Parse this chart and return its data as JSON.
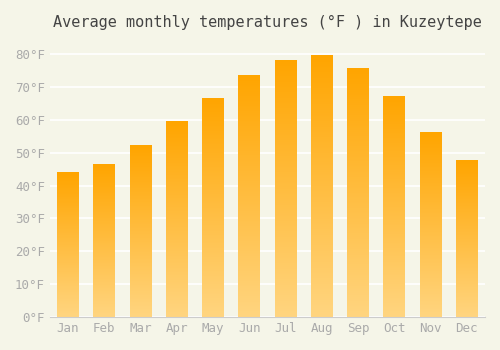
{
  "title": "Average monthly temperatures (°F ) in Kuzeytepe",
  "months": [
    "Jan",
    "Feb",
    "Mar",
    "Apr",
    "May",
    "Jun",
    "Jul",
    "Aug",
    "Sep",
    "Oct",
    "Nov",
    "Dec"
  ],
  "values": [
    44,
    46.5,
    52,
    59.5,
    66.5,
    73.5,
    78,
    79.5,
    75.5,
    67,
    56,
    47.5
  ],
  "bar_color_top": "#FFA500",
  "bar_color_bottom": "#FFD580",
  "ylim": [
    0,
    84
  ],
  "yticks": [
    0,
    10,
    20,
    30,
    40,
    50,
    60,
    70,
    80
  ],
  "ytick_labels": [
    "0°F",
    "10°F",
    "20°F",
    "30°F",
    "40°F",
    "50°F",
    "60°F",
    "70°F",
    "80°F"
  ],
  "bg_color": "#f5f5e8",
  "grid_color": "#ffffff",
  "title_fontsize": 11,
  "tick_fontsize": 9,
  "font_color": "#aaaaaa",
  "bar_width": 0.6
}
